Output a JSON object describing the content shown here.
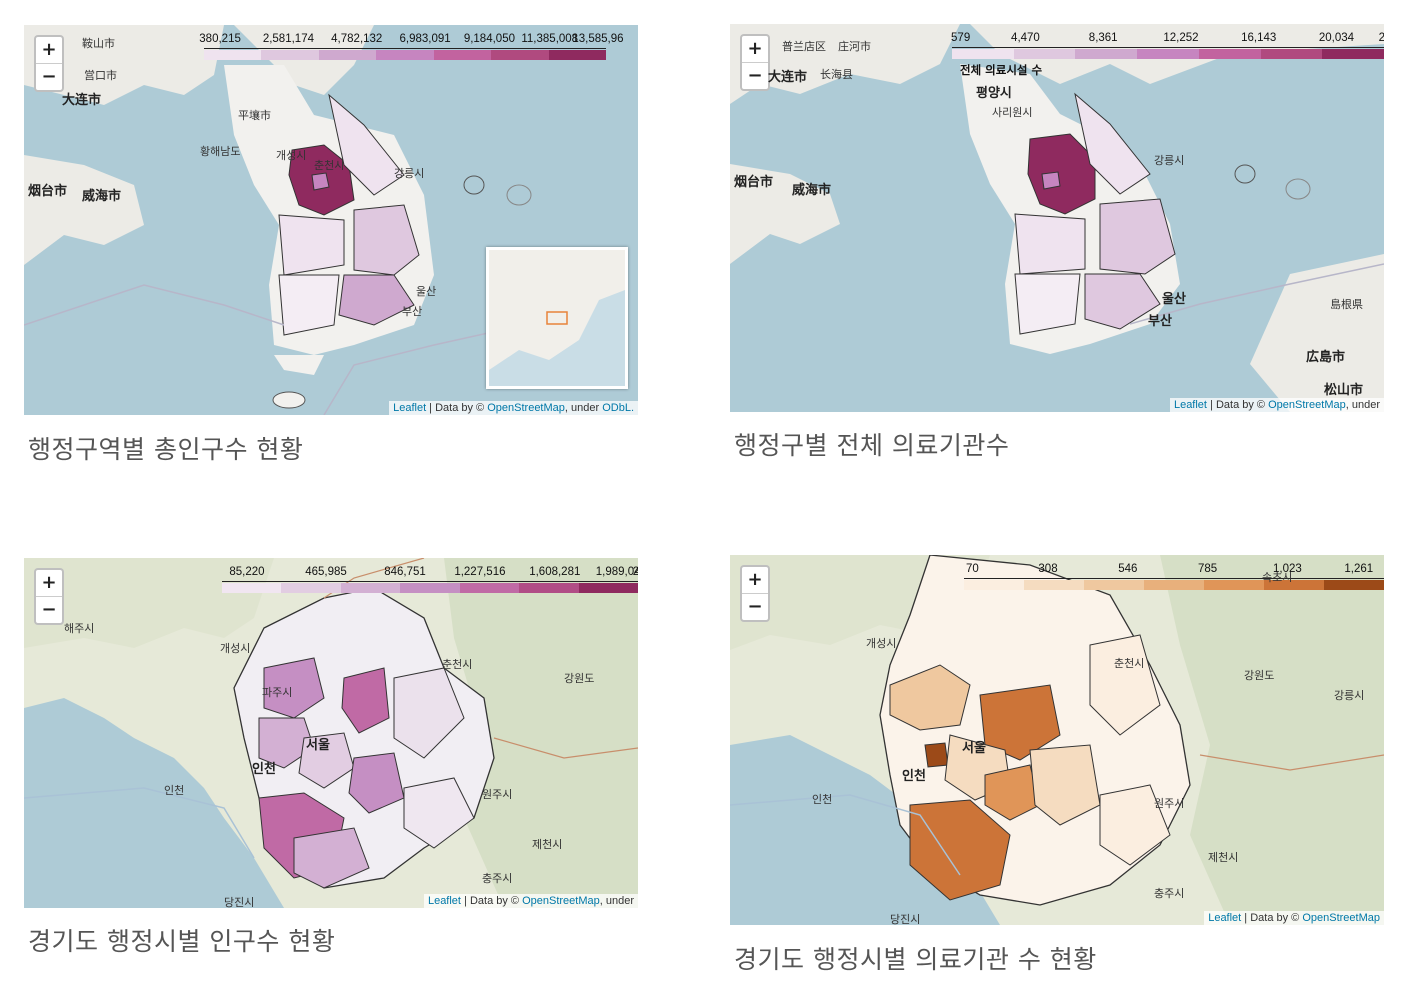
{
  "zoom": {
    "in_label": "+",
    "out_label": "−"
  },
  "attribution": {
    "leaflet": "Leaflet",
    "sep": " | Data by © ",
    "osm": "OpenStreetMap",
    "license": ", under ",
    "odbl": "ODbL."
  },
  "panels": [
    {
      "caption": "행정구역별 총인구수 현황",
      "legend_ticks": [
        "380,215",
        "2,581,174",
        "4,782,132",
        "6,983,091",
        "9,184,050",
        "11,385,008",
        "13,585,96"
      ],
      "legend_caption": "",
      "palette": [
        "#efe3ef",
        "#dfc8df",
        "#cfa9cf",
        "#c685c0",
        "#c2639f",
        "#b04a7f",
        "#8f2a5f"
      ],
      "labels": [
        {
          "text": "鞍山市",
          "cls": ""
        },
        {
          "text": "営口市",
          "cls": ""
        },
        {
          "text": "大连市",
          "cls": "big"
        },
        {
          "text": "威海市",
          "cls": "big"
        },
        {
          "text": "烟台市",
          "cls": "big"
        },
        {
          "text": "平壤市",
          "cls": ""
        },
        {
          "text": "개성시",
          "cls": ""
        },
        {
          "text": "춘천시",
          "cls": ""
        },
        {
          "text": "강릉시",
          "cls": ""
        },
        {
          "text": "울산",
          "cls": ""
        },
        {
          "text": "부산",
          "cls": ""
        },
        {
          "text": "황해남도",
          "cls": ""
        }
      ]
    },
    {
      "caption": "행정구별 전체 의료기관수",
      "legend_ticks": [
        "579",
        "4,470",
        "8,361",
        "12,252",
        "16,143",
        "20,034",
        "2"
      ],
      "legend_caption": "전체 의료시설 수",
      "palette": [
        "#efe3ef",
        "#dfc8df",
        "#cfa9cf",
        "#c685c0",
        "#c2639f",
        "#b04a7f",
        "#8f2a5f"
      ],
      "labels": [
        {
          "text": "普兰店区",
          "cls": ""
        },
        {
          "text": "庄河市",
          "cls": ""
        },
        {
          "text": "大连市",
          "cls": "big"
        },
        {
          "text": "长海县",
          "cls": ""
        },
        {
          "text": "威海市",
          "cls": "big"
        },
        {
          "text": "烟台市",
          "cls": "big"
        },
        {
          "text": "평양시",
          "cls": "big"
        },
        {
          "text": "사리원시",
          "cls": ""
        },
        {
          "text": "강릉시",
          "cls": ""
        },
        {
          "text": "울산",
          "cls": "big"
        },
        {
          "text": "부산",
          "cls": "big"
        },
        {
          "text": "広島市",
          "cls": "big"
        },
        {
          "text": "松山市",
          "cls": "big"
        },
        {
          "text": "島根県",
          "cls": ""
        }
      ]
    },
    {
      "caption": "경기도 행정시별 인구수 현황",
      "legend_ticks": [
        "85,220",
        "465,985",
        "846,751",
        "1,227,516",
        "1,608,281",
        "1,989,047",
        "2"
      ],
      "legend_caption": "",
      "palette": [
        "#f1e6f1",
        "#e2cde2",
        "#d3b0d3",
        "#c58fc3",
        "#c06aa5",
        "#b14d86",
        "#8f2a5f"
      ],
      "labels": [
        {
          "text": "해주시",
          "cls": ""
        },
        {
          "text": "개성시",
          "cls": ""
        },
        {
          "text": "파주시",
          "cls": ""
        },
        {
          "text": "서울",
          "cls": "big"
        },
        {
          "text": "인천",
          "cls": "big"
        },
        {
          "text": "춘천시",
          "cls": ""
        },
        {
          "text": "강원도",
          "cls": ""
        },
        {
          "text": "원주시",
          "cls": ""
        },
        {
          "text": "제천시",
          "cls": ""
        },
        {
          "text": "충주시",
          "cls": ""
        },
        {
          "text": "당진시",
          "cls": ""
        },
        {
          "text": "인천",
          "cls": ""
        }
      ]
    },
    {
      "caption": "경기도 행정시별 의료기관 수 현황",
      "legend_ticks": [
        "70",
        "308",
        "546",
        "785",
        "1,023",
        "1,261"
      ],
      "legend_caption": "",
      "palette": [
        "#fbeee0",
        "#f5dcc0",
        "#efc89f",
        "#e8b07c",
        "#e09558",
        "#cc7438",
        "#9c4a18"
      ],
      "labels": [
        {
          "text": "개성시",
          "cls": ""
        },
        {
          "text": "춘천시",
          "cls": ""
        },
        {
          "text": "강원도",
          "cls": ""
        },
        {
          "text": "서울",
          "cls": "big"
        },
        {
          "text": "인천",
          "cls": "big"
        },
        {
          "text": "강릉시",
          "cls": ""
        },
        {
          "text": "원주시",
          "cls": ""
        },
        {
          "text": "제천시",
          "cls": ""
        },
        {
          "text": "충주시",
          "cls": ""
        },
        {
          "text": "당진시",
          "cls": ""
        },
        {
          "text": "인천",
          "cls": ""
        },
        {
          "text": "속초시",
          "cls": ""
        }
      ]
    }
  ]
}
